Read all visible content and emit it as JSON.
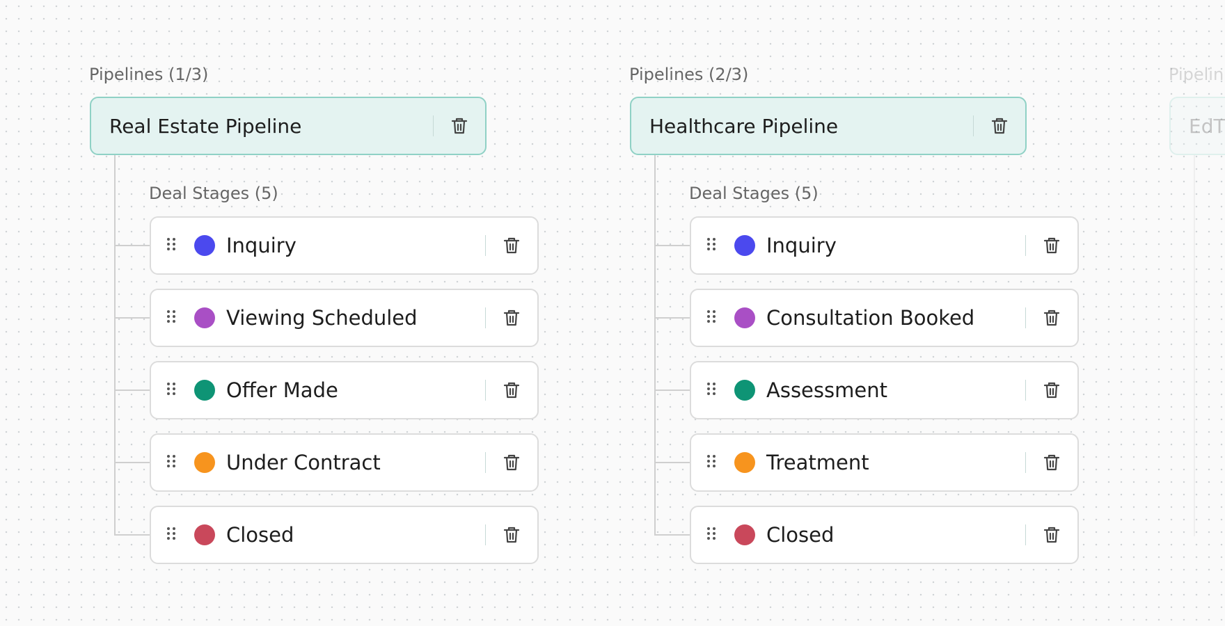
{
  "pipelines": [
    {
      "label": "Pipelines (1/3)",
      "name": "Real Estate Pipeline",
      "stages_label": "Deal Stages (5)",
      "stages": [
        {
          "name": "Inquiry",
          "color": "#4b49ee"
        },
        {
          "name": "Viewing Scheduled",
          "color": "#a94fc5"
        },
        {
          "name": "Offer Made",
          "color": "#0e9475"
        },
        {
          "name": "Under Contract",
          "color": "#f7941e"
        },
        {
          "name": "Closed",
          "color": "#c9485b"
        }
      ]
    },
    {
      "label": "Pipelines (2/3)",
      "name": "Healthcare Pipeline",
      "stages_label": "Deal Stages (5)",
      "stages": [
        {
          "name": "Inquiry",
          "color": "#4b49ee"
        },
        {
          "name": "Consultation Booked",
          "color": "#a94fc5"
        },
        {
          "name": "Assessment",
          "color": "#0e9475"
        },
        {
          "name": "Treatment",
          "color": "#f7941e"
        },
        {
          "name": "Closed",
          "color": "#c9485b"
        }
      ]
    },
    {
      "label": "Pipelin",
      "name": "EdT"
    }
  ]
}
